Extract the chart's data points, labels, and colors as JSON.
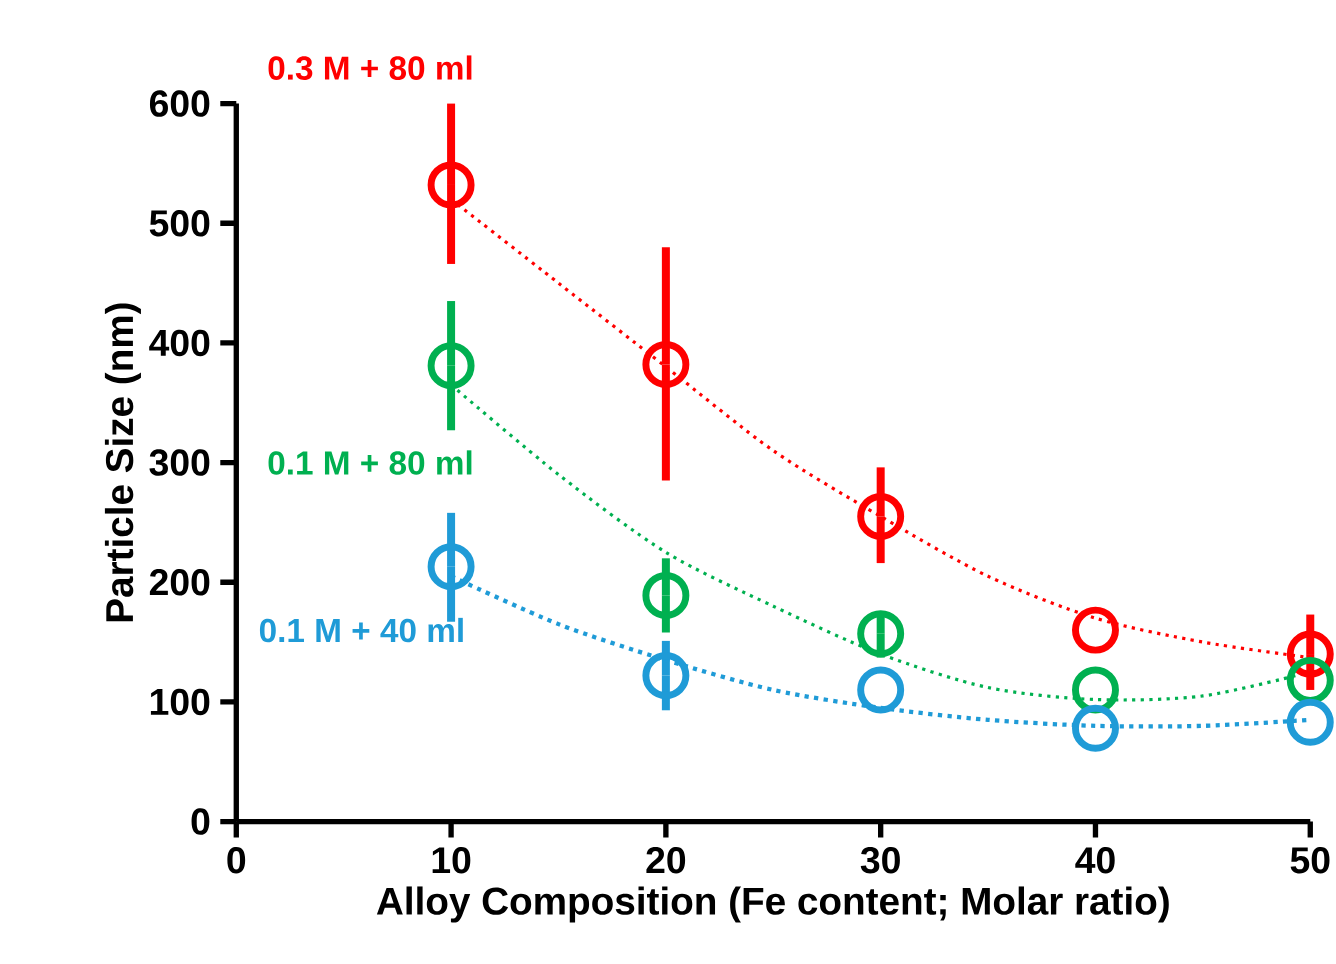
{
  "chart_data": {
    "type": "scatter",
    "xlabel": "Alloy Composition (Fe content; Molar ratio)",
    "ylabel": "Particle Size (nm)",
    "xlim": [
      0,
      50
    ],
    "xticks": [
      0,
      10,
      20,
      30,
      40,
      50
    ],
    "ylim": [
      0,
      600
    ],
    "yticks": [
      0,
      100,
      200,
      300,
      400,
      500,
      600
    ],
    "grid": false,
    "legend": false,
    "series": [
      {
        "name": "0.3 M + 80 ml",
        "marker": "circle",
        "color": "#ff0000",
        "x": [
          10,
          20,
          30,
          40,
          50
        ],
        "values": [
          532,
          382,
          255,
          160,
          140
        ],
        "errors": [
          [
            466,
            600
          ],
          [
            285,
            480
          ],
          [
            216,
            296
          ],
          null,
          [
            110,
            173
          ]
        ]
      },
      {
        "name": "0.1 M + 80 ml",
        "marker": "circle",
        "color": "#00b050",
        "x": [
          10,
          20,
          30,
          40,
          50
        ],
        "values": [
          381,
          189,
          157,
          110,
          118
        ],
        "errors": [
          [
            327,
            435
          ],
          [
            158,
            220
          ],
          [
            137,
            176
          ],
          null,
          null
        ]
      },
      {
        "name": "0.1 M + 40 ml",
        "marker": "circle",
        "color": "#1f9bd7",
        "x": [
          10,
          20,
          30,
          40,
          50
        ],
        "values": [
          213,
          122,
          110,
          78,
          83
        ],
        "errors": [
          [
            167,
            258
          ],
          [
            93,
            151
          ],
          null,
          null,
          null
        ]
      },
      {
        "type": "line",
        "line_style": "dotted",
        "marker": "none",
        "color": "#ff0000",
        "x": [
          10,
          15,
          20,
          25,
          30,
          35,
          40,
          45,
          50
        ],
        "values": [
          520,
          450,
          380,
          310,
          255,
          205,
          170,
          150,
          137
        ]
      },
      {
        "type": "line",
        "line_style": "dotted",
        "marker": "none",
        "color": "#00b050",
        "x": [
          10,
          15,
          20,
          25,
          30,
          35,
          40,
          45,
          50
        ],
        "values": [
          365,
          290,
          225,
          180,
          140,
          112,
          102,
          105,
          125
        ]
      },
      {
        "type": "line",
        "line_style": "dotted",
        "marker": "none",
        "color": "#1f9bd7",
        "x": [
          10,
          15,
          20,
          25,
          30,
          35,
          40,
          45,
          50
        ],
        "values": [
          205,
          165,
          135,
          110,
          95,
          85,
          80,
          80,
          85
        ]
      }
    ]
  }
}
